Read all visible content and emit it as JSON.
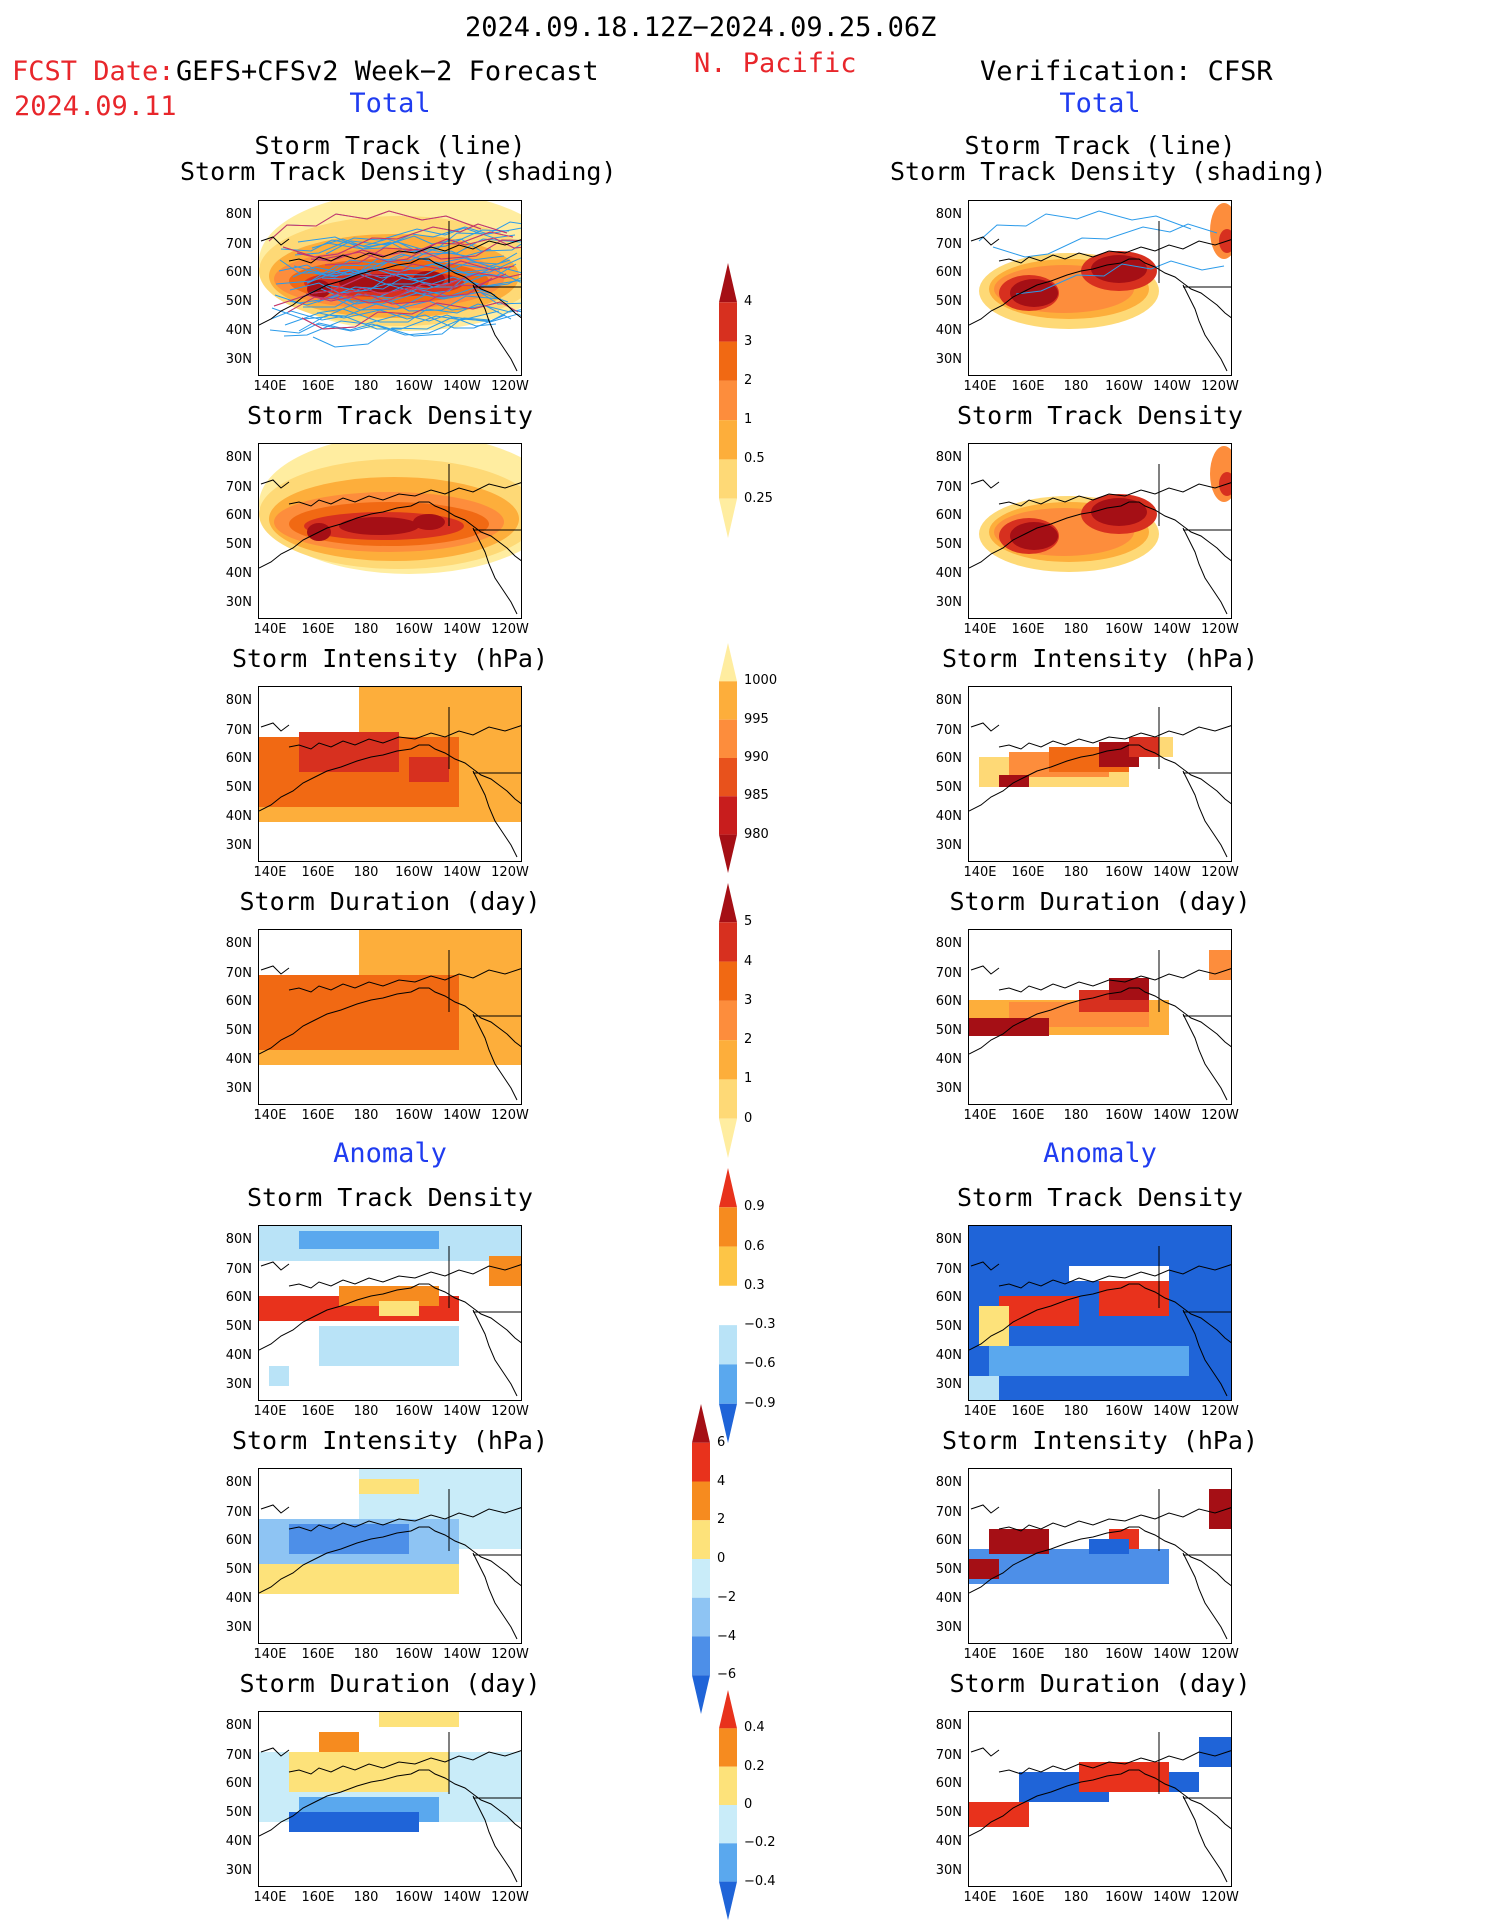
{
  "header": {
    "date_range": "2024.09.18.12Z−2024.09.25.06Z",
    "fcst_label": "FCST Date:",
    "fcst_date": "2024.09.11",
    "model": "GEFS+CFSv2 Week−2 Forecast",
    "region": "N. Pacific",
    "verification": "Verification: CFSR"
  },
  "sections": {
    "total": "Total",
    "anomaly": "Anomaly"
  },
  "axes": {
    "lat_labels": [
      "80N",
      "70N",
      "60N",
      "50N",
      "40N",
      "30N"
    ],
    "lon_labels": [
      "140E",
      "160E",
      "180",
      "160W",
      "140W",
      "120W"
    ]
  },
  "panel_titles": {
    "track_line": "Storm Track (line)",
    "track_shading": "Storm Track Density (shading)",
    "density": "Storm Track Density",
    "intensity": "Storm Intensity (hPa)",
    "duration": "Storm Duration (day)"
  },
  "colorbars": {
    "density": {
      "labels": [
        "4",
        "3",
        "2",
        "1",
        "0.5",
        "0.25"
      ],
      "colors": [
        "#a50f15",
        "#d7301f",
        "#f16913",
        "#fd8d3c",
        "#fdae3b",
        "#fed976",
        "#ffeda0"
      ]
    },
    "intensity": {
      "labels": [
        "1000",
        "995",
        "990",
        "985",
        "980"
      ],
      "colors": [
        "#ffeda0",
        "#fdae3b",
        "#fd8d3c",
        "#e8521c",
        "#c81d1d",
        "#a50f15"
      ]
    },
    "duration": {
      "labels": [
        "5",
        "4",
        "3",
        "2",
        "1",
        "0"
      ],
      "colors": [
        "#a50f15",
        "#d7301f",
        "#f16913",
        "#fd8d3c",
        "#fdae3b",
        "#fed976",
        "#ffeda0"
      ]
    },
    "anom_density": {
      "labels": [
        "0.9",
        "0.6",
        "0.3",
        "−0.3",
        "−0.6",
        "−0.9"
      ],
      "colors": [
        "#e8321c",
        "#f68b1f",
        "#fdc546",
        "#ffffff",
        "#b9e3f7",
        "#5aa8ee",
        "#1f64d8"
      ]
    },
    "anom_intensity": {
      "labels": [
        "6",
        "4",
        "2",
        "0",
        "−2",
        "−4",
        "−6"
      ],
      "colors": [
        "#a50f15",
        "#e8321c",
        "#f68b1f",
        "#fde27a",
        "#c9ecf9",
        "#8ec4f3",
        "#4d8fe8",
        "#1f64d8"
      ]
    },
    "anom_duration": {
      "labels": [
        "0.4",
        "0.2",
        "0",
        "−0.2",
        "−0.4"
      ],
      "colors": [
        "#e8321c",
        "#f68b1f",
        "#fde27a",
        "#c9ecf9",
        "#5aa8ee",
        "#1f64d8"
      ]
    }
  }
}
